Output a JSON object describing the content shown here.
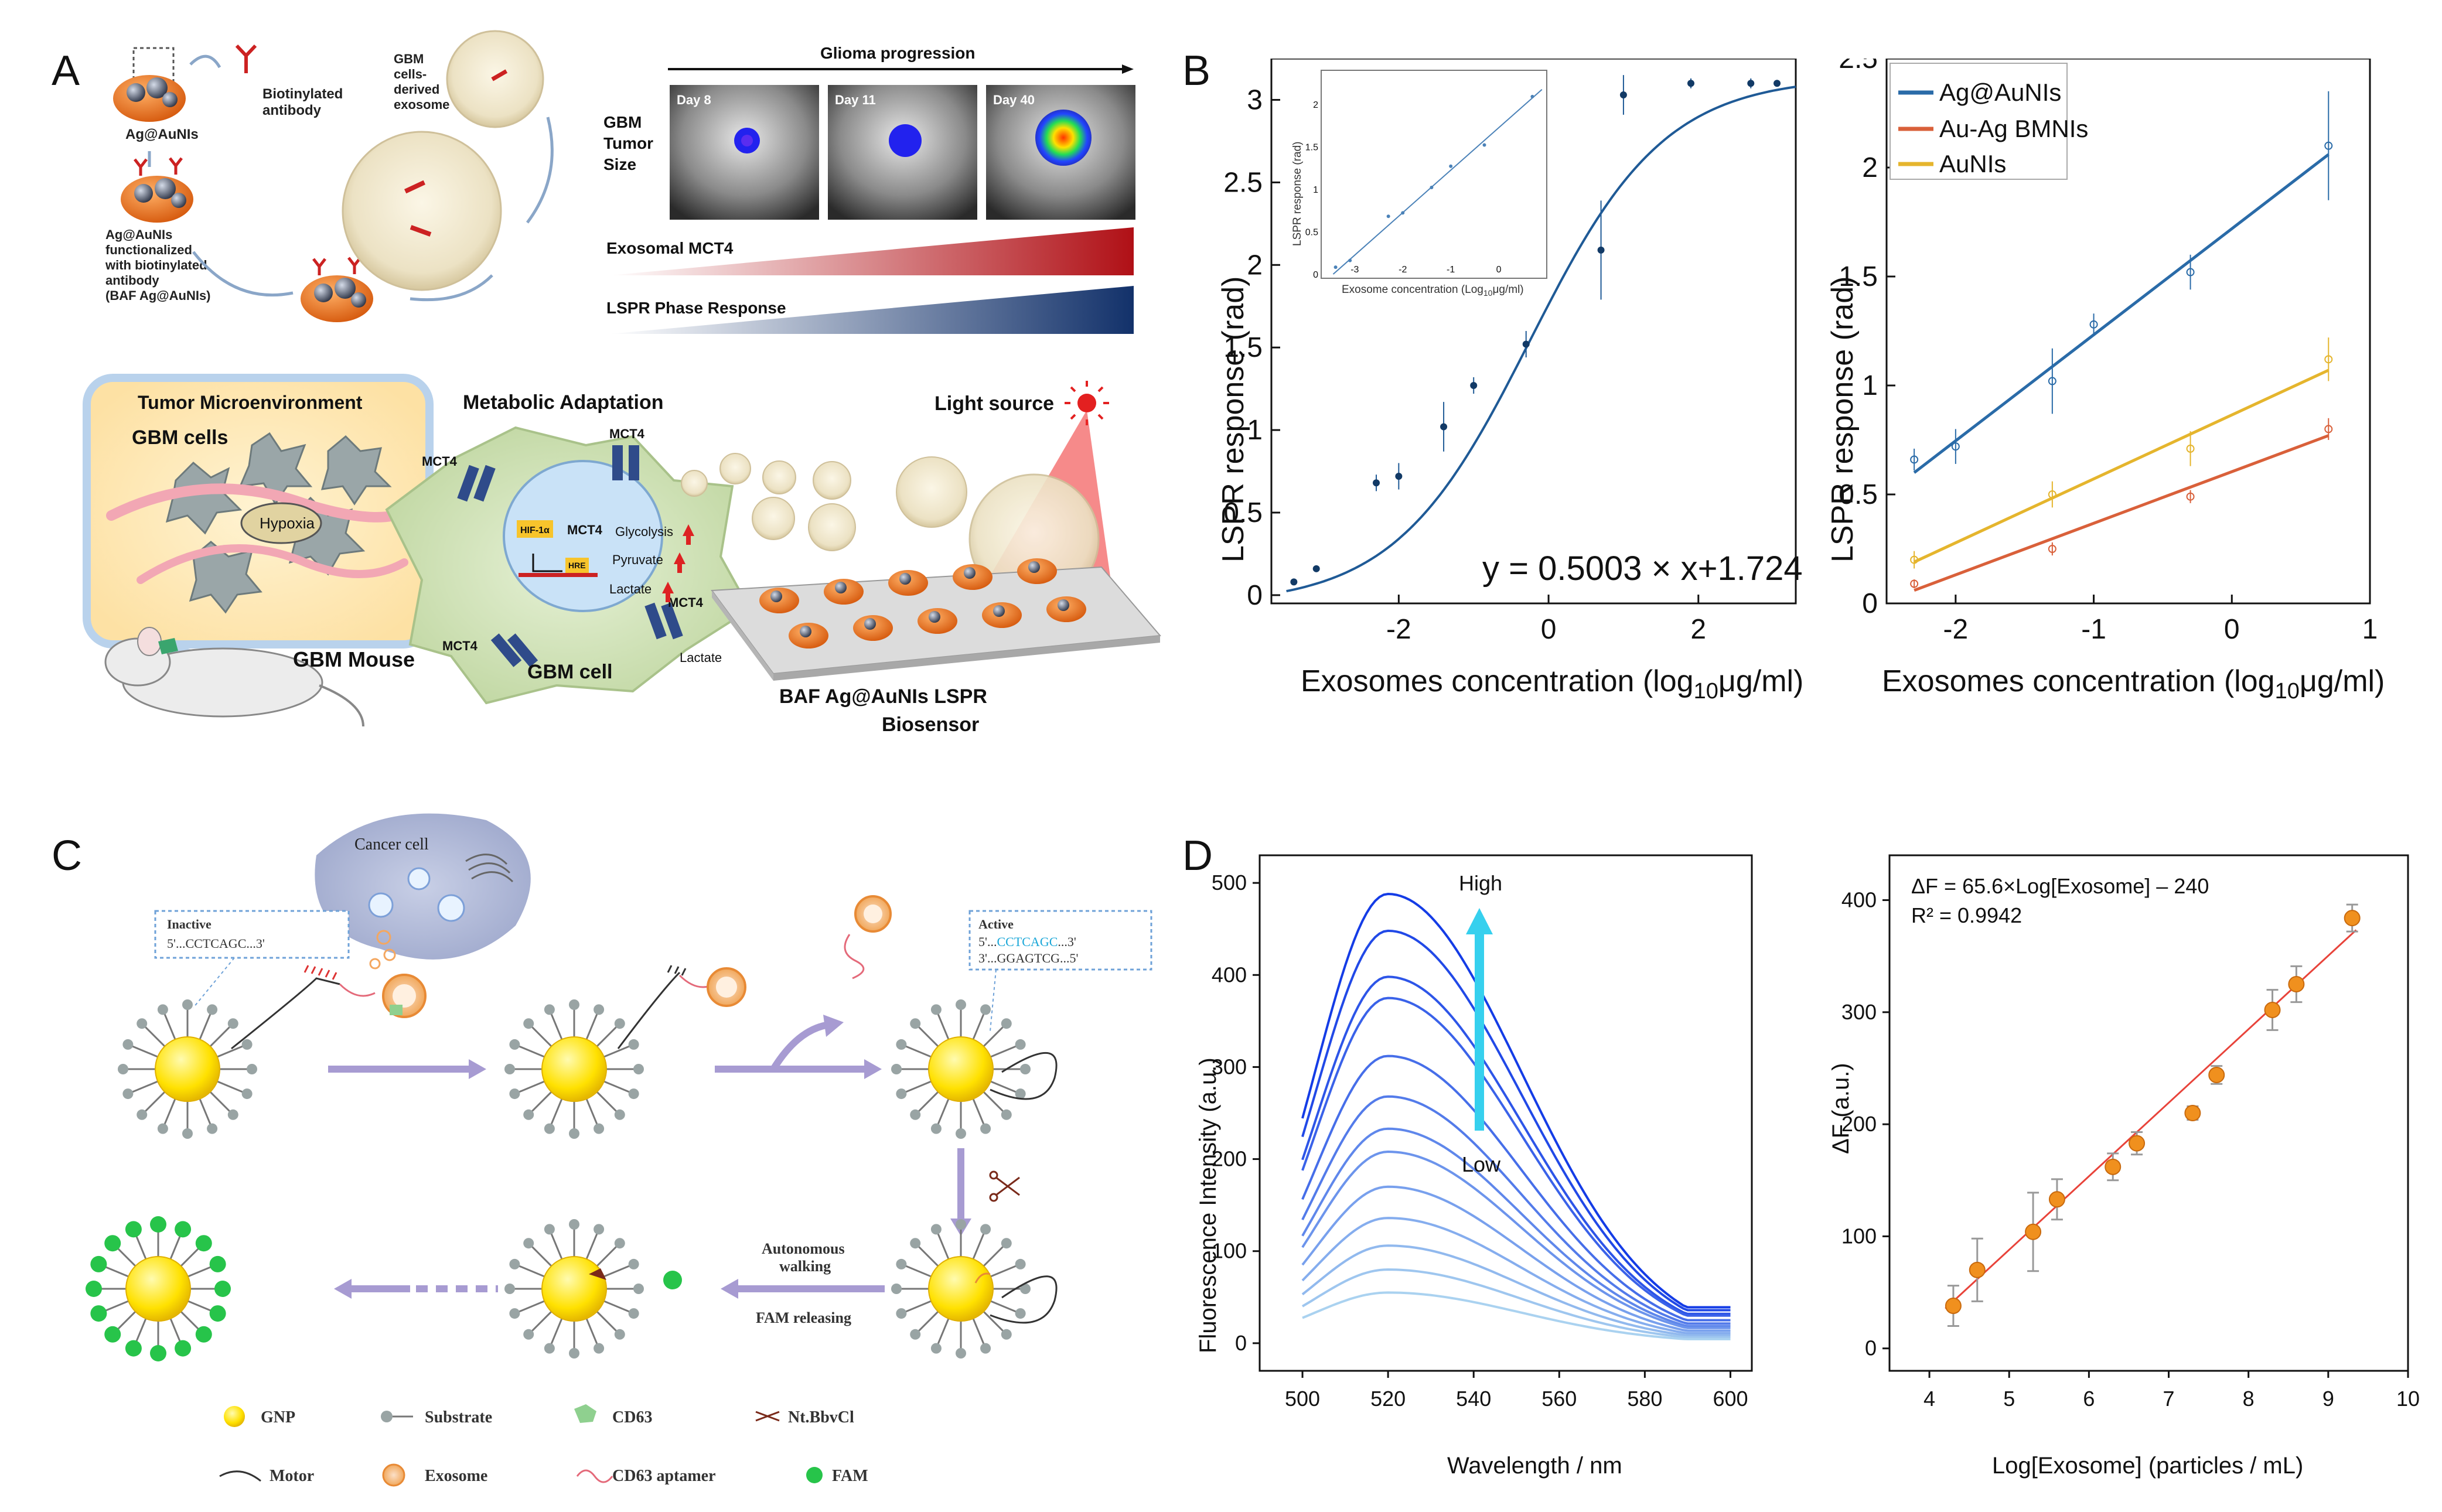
{
  "panel_labels": {
    "a": "A",
    "b": "B",
    "c": "C",
    "d": "D"
  },
  "panelA": {
    "ag_label": "Ag@AuNIs",
    "biotin_label_1": "Biotinylated",
    "biotin_label_2": "antibody",
    "func_1": "Ag@AuNIs",
    "func_2": "functionalized",
    "func_3": "with biotinylated",
    "func_4": "antibody",
    "func_5": "(BAF Ag@AuNIs)",
    "gbm_exo_1": "GBM",
    "gbm_exo_2": "cells-",
    "gbm_exo_3": "derived",
    "gbm_exo_4": "exosome",
    "progression": "Glioma progression",
    "tumor_1": "GBM",
    "tumor_2": "Tumor",
    "tumor_3": "Size",
    "days": [
      "Day 8",
      "Day 11",
      "Day 40"
    ],
    "exosomal": "Exosomal MCT4",
    "lspr_phase": "LSPR Phase Response",
    "tme": "Tumor Microenvironment",
    "gbm_cells": "GBM cells",
    "hypoxia": "Hypoxia",
    "gbm_mouse": "GBM Mouse",
    "metabolic": "Metabolic Adaptation",
    "mct4": "MCT4",
    "hif": "HIF-1α",
    "hre": "HRE",
    "glycolysis": "Glycolysis",
    "pyruvate": "Pyruvate",
    "lactate": "Lactate",
    "gbm_cell": "GBM cell",
    "light": "Light source",
    "biosensor_1": "BAF Ag@AuNIs LSPR",
    "biosensor_2": "Biosensor"
  },
  "panelC": {
    "cancer_cell": "Cancer cell",
    "inactive": "Inactive",
    "inactive_seq": "5'...CCTCAGC...3'",
    "active": "Active",
    "active_seq_pre": "5'...",
    "active_seq_mid": "CCTCAGC",
    "active_seq_post": "...3'",
    "active_seq2": "3'...GGAGTCG...5'",
    "walking_1": "Autonomous",
    "walking_2": "walking",
    "fam_rel": "FAM releasing",
    "legend": {
      "gnp": "GNP",
      "substrate": "Substrate",
      "cd63": "CD63",
      "nt": "Nt.BbvCl",
      "motor": "Motor",
      "exosome": "Exosome",
      "aptamer": "CD63 aptamer",
      "fam": "FAM"
    }
  },
  "colors": {
    "blue_fit": "#1f5a96",
    "ag": "#2a6ba8",
    "auag": "#d9603a",
    "auni": "#e5b52d",
    "orange": "#f0901e",
    "fit_red": "#e8433a"
  },
  "chart_data": [
    {
      "id": "B-left",
      "type": "scatter",
      "title": "",
      "xlabel": "Exosomes concentration (log10μg/ml)",
      "ylabel": "LSPR response (rad)",
      "xlim": [
        -3.7,
        3.3
      ],
      "ylim": [
        -0.05,
        3.25
      ],
      "xticks": [
        -2,
        0,
        2
      ],
      "yticks": [
        0,
        0.5,
        1,
        1.5,
        2,
        2.5,
        3
      ],
      "points": [
        {
          "x": -3.4,
          "y": 0.08,
          "err": 0.02
        },
        {
          "x": -3.1,
          "y": 0.16,
          "err": 0.02
        },
        {
          "x": -2.3,
          "y": 0.68,
          "err": 0.05
        },
        {
          "x": -2.0,
          "y": 0.72,
          "err": 0.08
        },
        {
          "x": -1.4,
          "y": 1.02,
          "err": 0.15
        },
        {
          "x": -1.0,
          "y": 1.27,
          "err": 0.05
        },
        {
          "x": -0.3,
          "y": 1.52,
          "err": 0.08
        },
        {
          "x": 0.7,
          "y": 2.09,
          "err": 0.3
        },
        {
          "x": 1.0,
          "y": 3.03,
          "err": 0.12
        },
        {
          "x": 1.9,
          "y": 3.1,
          "err": 0.03
        },
        {
          "x": 2.7,
          "y": 3.1,
          "err": 0.03
        },
        {
          "x": 3.05,
          "y": 3.1,
          "err": 0.02
        }
      ],
      "fit": "sigmoid",
      "equation": "y = 0.5003 × x+1.724",
      "inset": {
        "xlabel": "Exosome concentration (Log10μg/ml)",
        "ylabel": "LSPR response (rad)",
        "xlim": [
          -3.7,
          1.0
        ],
        "ylim": [
          -0.05,
          2.4
        ],
        "xticks": [
          -3,
          -2,
          -1,
          0
        ],
        "yticks": [
          0,
          0.5,
          1,
          1.5,
          2
        ],
        "points": [
          {
            "x": -3.4,
            "y": 0.08
          },
          {
            "x": -3.1,
            "y": 0.16
          },
          {
            "x": -2.3,
            "y": 0.68
          },
          {
            "x": -2.0,
            "y": 0.72
          },
          {
            "x": -1.4,
            "y": 1.02
          },
          {
            "x": -1.0,
            "y": 1.27
          },
          {
            "x": -0.3,
            "y": 1.52
          },
          {
            "x": 0.7,
            "y": 2.09
          }
        ]
      }
    },
    {
      "id": "B-right",
      "type": "scatter",
      "xlabel": "Exosomes concentration (log10μg/ml)",
      "ylabel": "LSPR response (rad)",
      "xlim": [
        -2.5,
        1.0
      ],
      "ylim": [
        0,
        2.5
      ],
      "xticks": [
        -2,
        -1,
        0,
        1
      ],
      "yticks": [
        0,
        0.5,
        1,
        1.5,
        2,
        2.5
      ],
      "legend_position": "top-left",
      "series": [
        {
          "name": "Ag@AuNIs",
          "x": [
            -2.3,
            -2.0,
            -1.3,
            -1.0,
            -0.3,
            0.7
          ],
          "y": [
            0.66,
            0.72,
            1.02,
            1.28,
            1.52,
            2.1
          ],
          "err": [
            0.05,
            0.08,
            0.15,
            0.05,
            0.08,
            0.25
          ],
          "fit": [
            0.6,
            2.06
          ]
        },
        {
          "name": "Au-Ag BMNIs",
          "x": [
            -2.3,
            -1.3,
            -0.3,
            0.7
          ],
          "y": [
            0.09,
            0.25,
            0.49,
            0.8
          ],
          "err": [
            0.02,
            0.03,
            0.03,
            0.05
          ],
          "fit": [
            0.06,
            0.77
          ]
        },
        {
          "name": "AuNIs",
          "x": [
            -2.3,
            -1.3,
            -0.3,
            0.7
          ],
          "y": [
            0.2,
            0.5,
            0.71,
            1.12
          ],
          "err": [
            0.04,
            0.06,
            0.08,
            0.1
          ],
          "fit": [
            0.19,
            1.07
          ]
        }
      ]
    },
    {
      "id": "D-left",
      "type": "line",
      "xlabel": "Wavelength / nm",
      "ylabel": "Fluorescence Intensity (a.u.)",
      "xlim": [
        490,
        605
      ],
      "ylim": [
        -30,
        530
      ],
      "xticks": [
        500,
        520,
        540,
        560,
        580,
        600
      ],
      "yticks": [
        0,
        100,
        200,
        300,
        400,
        500
      ],
      "peak_wavelength": 520,
      "sigma_left": 17,
      "sigma_right": 31,
      "peak_heights": [
        488,
        448,
        398,
        375,
        312,
        268,
        233,
        208,
        170,
        136,
        106,
        80,
        55
      ],
      "high_label": "High",
      "low_label": "Low"
    },
    {
      "id": "D-right",
      "type": "scatter",
      "xlabel": "Log[Exosome] (particles / mL)",
      "ylabel": "ΔF (a.u.)",
      "xlim": [
        3.5,
        10
      ],
      "ylim": [
        -20,
        440
      ],
      "xticks": [
        4,
        5,
        6,
        7,
        8,
        9,
        10
      ],
      "yticks": [
        0,
        100,
        200,
        300,
        400
      ],
      "points": [
        {
          "x": 4.3,
          "y": 38,
          "err": 18
        },
        {
          "x": 4.6,
          "y": 70,
          "err": 28
        },
        {
          "x": 5.3,
          "y": 104,
          "err": 35
        },
        {
          "x": 5.6,
          "y": 133,
          "err": 18
        },
        {
          "x": 6.3,
          "y": 162,
          "err": 12
        },
        {
          "x": 6.6,
          "y": 183,
          "err": 10
        },
        {
          "x": 7.3,
          "y": 210,
          "err": 6
        },
        {
          "x": 7.6,
          "y": 244,
          "err": 8
        },
        {
          "x": 8.3,
          "y": 302,
          "err": 18
        },
        {
          "x": 8.6,
          "y": 325,
          "err": 16
        },
        {
          "x": 9.3,
          "y": 384,
          "err": 12
        }
      ],
      "fit_slope": 65.6,
      "fit_intercept": -240,
      "equation": "ΔF = 65.6×Log[Exosome] – 240",
      "r2": "R² = 0.9942"
    }
  ]
}
